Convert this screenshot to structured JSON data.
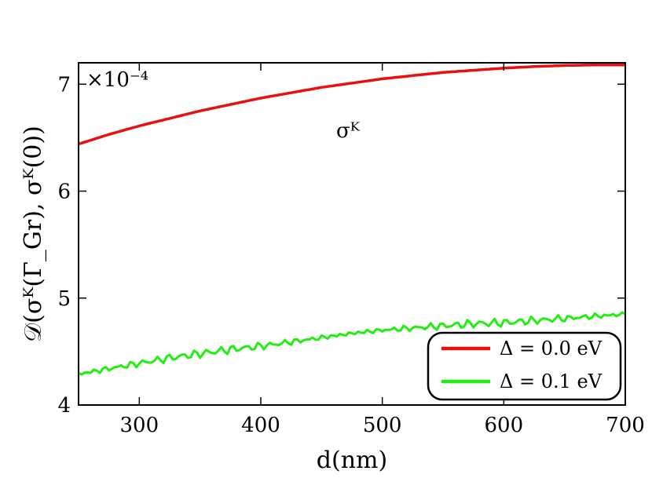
{
  "chart_data": {
    "type": "line",
    "xlabel": "d(nm)",
    "ylabel": "𝒟(σᴷ(Γ_Gr), σᴷ(0))",
    "y_multiplier": "×10⁻⁴",
    "annotation": "σᴷ",
    "xlim": [
      250,
      700
    ],
    "ylim": [
      4,
      7.2
    ],
    "x_ticks": [
      300,
      400,
      500,
      600,
      700
    ],
    "y_ticks": [
      4,
      5,
      6,
      7
    ],
    "grid": false,
    "legend_position": "bottom-right",
    "series": [
      {
        "name": "Δ = 0.0 eV",
        "color": "#e8110f",
        "x": [
          250,
          275,
          300,
          325,
          350,
          375,
          400,
          425,
          450,
          475,
          500,
          525,
          550,
          575,
          600,
          625,
          650,
          675,
          700
        ],
        "y": [
          6.44,
          6.53,
          6.61,
          6.68,
          6.75,
          6.81,
          6.87,
          6.92,
          6.97,
          7.01,
          7.05,
          7.08,
          7.11,
          7.13,
          7.15,
          7.165,
          7.175,
          7.18,
          7.18
        ]
      },
      {
        "name": "Δ = 0.1 eV",
        "color": "#22ee11",
        "x": [
          250,
          275,
          300,
          325,
          350,
          375,
          400,
          425,
          450,
          475,
          500,
          525,
          550,
          575,
          600,
          625,
          650,
          675,
          700
        ],
        "y": [
          4.29,
          4.34,
          4.39,
          4.44,
          4.48,
          4.52,
          4.55,
          4.59,
          4.63,
          4.67,
          4.7,
          4.72,
          4.74,
          4.76,
          4.77,
          4.79,
          4.81,
          4.83,
          4.85
        ]
      }
    ]
  }
}
